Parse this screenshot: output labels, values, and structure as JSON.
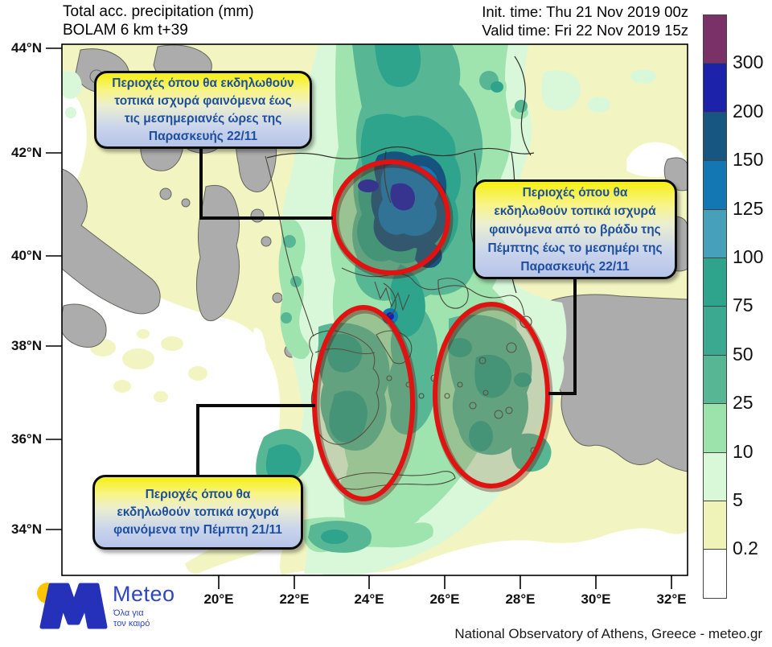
{
  "header": {
    "title_line1": "Total acc. precipitation (mm)",
    "title_line2": "BOLAM 6 km t+39",
    "init_time": "Init. time: Thu 21 Nov 2019 00z",
    "valid_time": "Valid time: Fri 22 Nov 2019 15z"
  },
  "axes": {
    "lat_labels": [
      "44°N",
      "42°N",
      "40°N",
      "38°N",
      "36°N",
      "34°N"
    ],
    "lon_labels": [
      "20°E",
      "22°E",
      "24°E",
      "26°E",
      "28°E",
      "30°E",
      "32°E"
    ]
  },
  "legend": {
    "thresholds": [
      "300",
      "200",
      "150",
      "125",
      "100",
      "75",
      "50",
      "25",
      "10",
      "5",
      "0.2"
    ],
    "colors": [
      "#7a3168",
      "#1c22aa",
      "#175680",
      "#1377b4",
      "#47a0ba",
      "#2ea48c",
      "#3aa98f",
      "#57b795",
      "#9ce3ab",
      "#d8f8d8",
      "#f0f3b8",
      "#ffffff"
    ]
  },
  "annotations": [
    {
      "id": "north",
      "lines": [
        "Περιοχές όπου θα εκδηλωθούν",
        "τοπικά ισχυρά φαινόμενα έως",
        "τις μεσημεριανές ώρες της",
        "Παρασκευής 22/11"
      ]
    },
    {
      "id": "east",
      "lines": [
        "Περιοχές όπου θα",
        "εκδηλωθούν τοπικά ισχυρά",
        "φαινόμενα από το βράδυ της",
        "Πέμπτης έως το μεσημέρι της",
        "Παρασκευής 22/11"
      ]
    },
    {
      "id": "southwest",
      "lines": [
        "Περιοχές όπου θα",
        "εκδηλωθούν τοπικά ισχυρά",
        "φαινόμενα την Πέμπτη 21/11"
      ]
    }
  ],
  "highlight_color": "#e01212",
  "logo": {
    "brand": "Meteo",
    "tagline_line1": "Όλα για",
    "tagline_line2": "τον καιρό"
  },
  "footer": {
    "attribution": "National Observatory of Athens, Greece - meteo.gr"
  }
}
